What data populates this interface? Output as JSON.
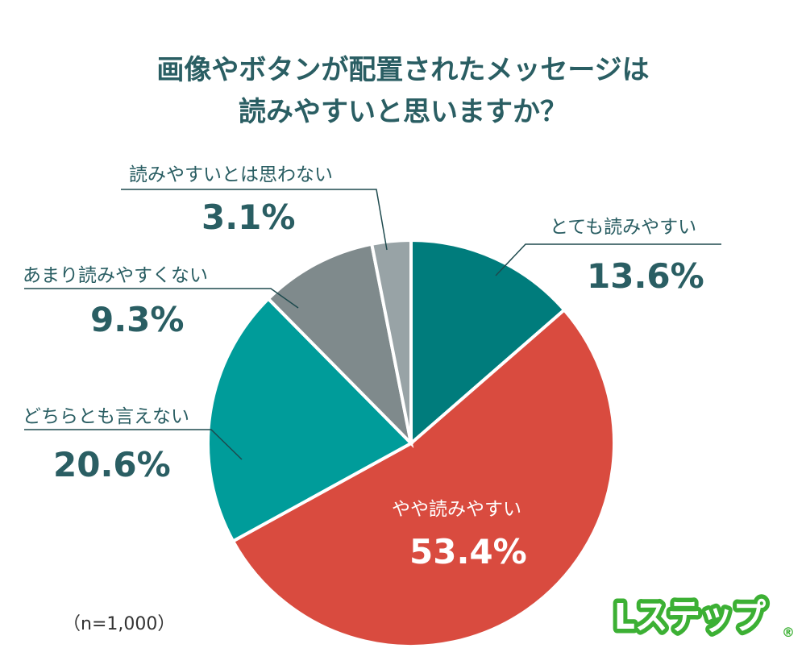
{
  "chart_data": {
    "type": "pie",
    "title": [
      "画像やボタンが配置されたメッセージは",
      "読みやすいと思いますか？"
    ],
    "start": "top",
    "direction": "clockwise",
    "slices": [
      {
        "label": "とても読みやすい",
        "value": 13.6,
        "display": "13.6%",
        "color": "#007c7c"
      },
      {
        "label": "やや読みやすい",
        "value": 53.4,
        "display": "53.4%",
        "color": "#d94b3f"
      },
      {
        "label": "どちらとも言えない",
        "value": 20.6,
        "display": "20.6%",
        "color": "#009c9a"
      },
      {
        "label": "あまり読みやすくない",
        "value": 9.3,
        "display": "9.3%",
        "color": "#7f8a8c"
      },
      {
        "label": "読みやすいとは思わない",
        "value": 3.1,
        "display": "3.1%",
        "color": "#98a3a6"
      }
    ],
    "note": "（n=1,000）"
  },
  "logo": {
    "text": "Lステップ",
    "registered": "®",
    "color": "#3cb034"
  }
}
